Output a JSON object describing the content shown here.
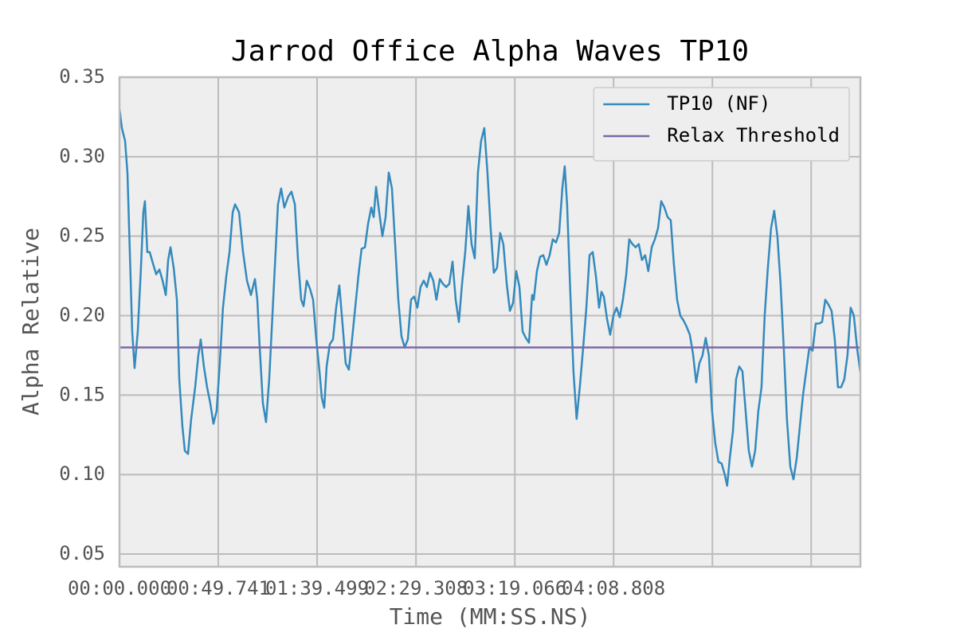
{
  "chart_data": {
    "type": "line",
    "title": "Jarrod Office Alpha Waves TP10",
    "x_label": "Time (MM:SS.NS)",
    "y_label": "Alpha Relative",
    "xlim": [
      0,
      373.1
    ],
    "ylim": [
      0.042,
      0.35
    ],
    "xticks": [
      {
        "value": 0,
        "label": "00:00.000"
      },
      {
        "value": 49.741,
        "label": "00:49.741"
      },
      {
        "value": 99.499,
        "label": "01:39.499"
      },
      {
        "value": 149.308,
        "label": "02:29.308"
      },
      {
        "value": 199.066,
        "label": "03:19.066"
      },
      {
        "value": 248.808,
        "label": "04:08.808"
      },
      {
        "value": 298.57,
        "label": null
      },
      {
        "value": 348.32,
        "label": null
      }
    ],
    "yticks": [
      0.05,
      {
        "value": 0.1,
        "label": "0.10"
      },
      0.15,
      {
        "value": 0.2,
        "label": "0.20"
      },
      0.25,
      {
        "value": 0.3,
        "label": "0.30"
      },
      0.35
    ],
    "grid": true,
    "legend_position": "upper right",
    "series": [
      {
        "name": "TP10 (NF)",
        "color": "#348abd",
        "x": [
          0,
          1.2,
          2.8,
          4.0,
          5.2,
          6.4,
          7.6,
          9.2,
          10.8,
          12.0,
          12.8,
          14.0,
          15.2,
          16.8,
          18.5,
          20.1,
          21.7,
          23.3,
          24.5,
          25.7,
          27.3,
          28.9,
          30.1,
          31.7,
          32.9,
          34.5,
          36.1,
          38.1,
          39.7,
          40.9,
          42.5,
          44.1,
          45.7,
          47.3,
          48.9,
          50.5,
          52.1,
          53.8,
          55.4,
          57.0,
          58.2,
          60.2,
          62.2,
          64.2,
          66.2,
          68.2,
          69.4,
          70.6,
          72.2,
          73.8,
          75.4,
          77.0,
          78.6,
          79.8,
          81.4,
          83.0,
          85.0,
          86.6,
          88.3,
          89.9,
          91.5,
          92.7,
          94.3,
          95.9,
          97.5,
          99.1,
          100.7,
          101.9,
          103.1,
          104.3,
          105.9,
          107.5,
          109.1,
          110.7,
          112.3,
          113.9,
          115.5,
          117.1,
          118.7,
          120.3,
          121.9,
          123.6,
          125.2,
          126.8,
          128.0,
          129.2,
          130.8,
          132.4,
          134.0,
          135.6,
          137.2,
          138.8,
          140.4,
          142.0,
          143.6,
          145.2,
          146.8,
          148.4,
          150.0,
          151.6,
          153.2,
          154.8,
          156.4,
          158.0,
          159.6,
          161.3,
          162.9,
          164.5,
          166.1,
          167.7,
          169.3,
          170.9,
          172.5,
          174.1,
          175.7,
          177.3,
          178.9,
          180.5,
          182.1,
          183.7,
          185.3,
          186.9,
          188.5,
          190.1,
          191.7,
          193.3,
          195.0,
          196.6,
          198.2,
          199.8,
          201.4,
          203.0,
          204.6,
          206.2,
          207.8,
          208.6,
          210.2,
          211.8,
          213.4,
          215.0,
          216.6,
          218.2,
          219.8,
          221.4,
          223.0,
          224.2,
          225.4,
          227.0,
          228.6,
          230.2,
          231.8,
          233.5,
          235.1,
          236.7,
          238.3,
          239.9,
          241.5,
          242.7,
          243.9,
          245.5,
          247.1,
          248.7,
          250.3,
          251.9,
          253.5,
          255.1,
          256.7,
          258.3,
          259.9,
          261.5,
          263.1,
          264.7,
          266.3,
          268.0,
          269.6,
          271.2,
          272.8,
          274.4,
          276.0,
          277.6,
          279.2,
          280.8,
          282.4,
          284.0,
          285.6,
          287.2,
          288.8,
          290.4,
          292.0,
          293.6,
          295.2,
          296.8,
          298.4,
          300.0,
          301.6,
          303.2,
          304.8,
          306.0,
          307.3,
          308.9,
          310.5,
          312.1,
          313.7,
          315.3,
          316.9,
          318.5,
          320.1,
          321.7,
          323.3,
          324.9,
          326.5,
          328.1,
          329.7,
          331.3,
          332.9,
          334.5,
          336.1,
          337.8,
          339.4,
          341.0,
          342.6,
          344.2,
          345.8,
          347.4,
          349.0,
          350.6,
          352.2,
          353.8,
          355.4,
          357.0,
          358.6,
          360.2,
          361.8,
          363.4,
          365.0,
          366.6,
          368.2,
          369.8,
          371.4,
          373.1
        ],
        "values": [
          0.33,
          0.318,
          0.31,
          0.29,
          0.24,
          0.19,
          0.167,
          0.19,
          0.23,
          0.265,
          0.272,
          0.24,
          0.24,
          0.233,
          0.226,
          0.229,
          0.222,
          0.213,
          0.235,
          0.243,
          0.23,
          0.21,
          0.16,
          0.13,
          0.115,
          0.113,
          0.135,
          0.155,
          0.175,
          0.185,
          0.168,
          0.155,
          0.145,
          0.132,
          0.14,
          0.17,
          0.205,
          0.225,
          0.24,
          0.265,
          0.27,
          0.265,
          0.24,
          0.222,
          0.213,
          0.223,
          0.21,
          0.18,
          0.145,
          0.133,
          0.16,
          0.2,
          0.24,
          0.27,
          0.28,
          0.268,
          0.275,
          0.278,
          0.27,
          0.235,
          0.21,
          0.206,
          0.222,
          0.217,
          0.21,
          0.185,
          0.165,
          0.148,
          0.142,
          0.168,
          0.182,
          0.185,
          0.205,
          0.219,
          0.195,
          0.17,
          0.166,
          0.185,
          0.205,
          0.225,
          0.242,
          0.243,
          0.258,
          0.268,
          0.262,
          0.281,
          0.265,
          0.25,
          0.262,
          0.29,
          0.28,
          0.245,
          0.21,
          0.187,
          0.18,
          0.185,
          0.21,
          0.212,
          0.205,
          0.218,
          0.222,
          0.218,
          0.227,
          0.222,
          0.21,
          0.223,
          0.22,
          0.218,
          0.22,
          0.234,
          0.21,
          0.196,
          0.22,
          0.24,
          0.269,
          0.245,
          0.236,
          0.29,
          0.31,
          0.318,
          0.29,
          0.255,
          0.227,
          0.23,
          0.252,
          0.245,
          0.22,
          0.203,
          0.208,
          0.228,
          0.218,
          0.19,
          0.186,
          0.183,
          0.213,
          0.21,
          0.228,
          0.237,
          0.238,
          0.232,
          0.238,
          0.248,
          0.246,
          0.252,
          0.28,
          0.294,
          0.27,
          0.215,
          0.165,
          0.135,
          0.155,
          0.18,
          0.205,
          0.238,
          0.24,
          0.225,
          0.205,
          0.215,
          0.212,
          0.198,
          0.188,
          0.2,
          0.205,
          0.199,
          0.21,
          0.225,
          0.248,
          0.245,
          0.243,
          0.245,
          0.235,
          0.238,
          0.228,
          0.243,
          0.248,
          0.255,
          0.272,
          0.268,
          0.262,
          0.26,
          0.232,
          0.21,
          0.2,
          0.197,
          0.193,
          0.188,
          0.176,
          0.158,
          0.17,
          0.175,
          0.186,
          0.175,
          0.14,
          0.12,
          0.108,
          0.107,
          0.1,
          0.093,
          0.11,
          0.127,
          0.16,
          0.168,
          0.165,
          0.14,
          0.115,
          0.105,
          0.115,
          0.14,
          0.155,
          0.2,
          0.23,
          0.255,
          0.266,
          0.25,
          0.22,
          0.18,
          0.135,
          0.105,
          0.097,
          0.11,
          0.13,
          0.15,
          0.165,
          0.18,
          0.178,
          0.195,
          0.195,
          0.196,
          0.21,
          0.207,
          0.203,
          0.185,
          0.155,
          0.155,
          0.16,
          0.175,
          0.205,
          0.2,
          0.18,
          0.164
        ]
      },
      {
        "name": "Relax Threshold",
        "color": "#7a68a6",
        "x": [
          0,
          373.1
        ],
        "values": [
          0.18,
          0.18
        ]
      }
    ]
  }
}
